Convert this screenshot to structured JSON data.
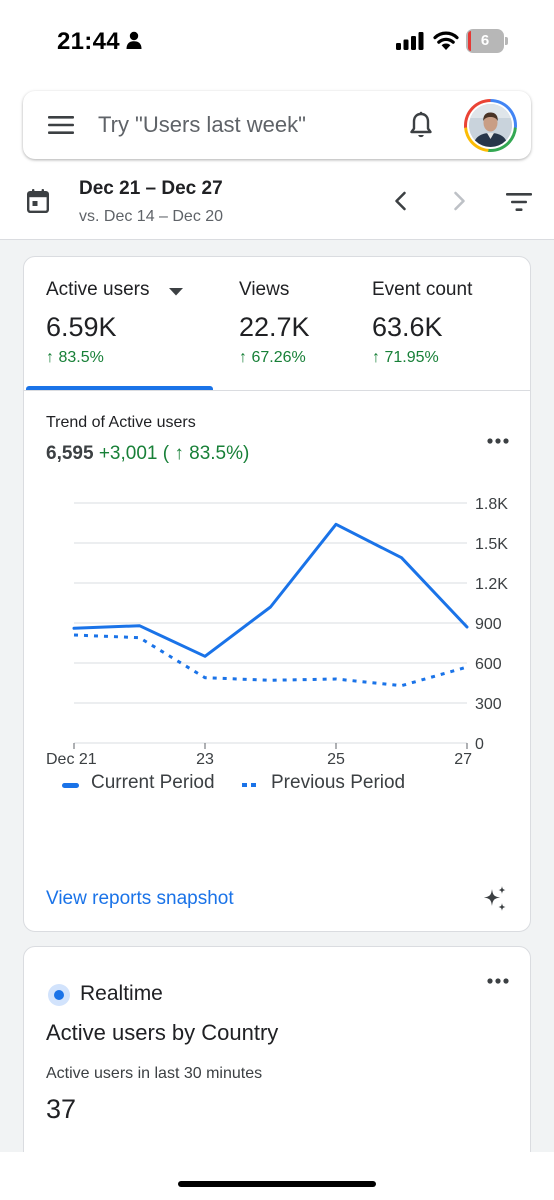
{
  "status_bar": {
    "time": "21:44",
    "battery_level": "6",
    "icons": [
      "person-icon",
      "cellular-signal-icon",
      "wifi-icon",
      "battery-icon"
    ]
  },
  "search": {
    "placeholder": "Try \"Users last week\"",
    "icons": [
      "menu-icon",
      "bell-icon",
      "avatar"
    ]
  },
  "date_range": {
    "current": "Dec 21 – Dec 27",
    "comparison": "vs. Dec 14 – Dec 20",
    "icons": [
      "calendar-icon",
      "chevron-left-icon",
      "chevron-right-icon",
      "filter-icon"
    ]
  },
  "metric_tabs": [
    {
      "label": "Active users",
      "value": "6.59K",
      "change": "↑ 83.5%",
      "selected": true
    },
    {
      "label": "Views",
      "value": "22.7K",
      "change": "↑ 67.26%",
      "selected": false
    },
    {
      "label": "Event count",
      "value": "63.6K",
      "change": "↑ 71.95%",
      "selected": false
    }
  ],
  "trend": {
    "title": "Trend of Active users",
    "total": "6,595",
    "delta": "+3,001 ( ↑ 83.5%)"
  },
  "chart_data": {
    "type": "line",
    "x": [
      "Dec 21",
      "Dec 22",
      "Dec 23",
      "Dec 24",
      "Dec 25",
      "Dec 26",
      "Dec 27"
    ],
    "x_tick_labels": [
      "Dec 21",
      "23",
      "25",
      "27"
    ],
    "y_tick_labels": [
      "0",
      "300",
      "600",
      "900",
      "1.2K",
      "1.5K",
      "1.8K"
    ],
    "ylim": [
      0,
      1800
    ],
    "y_axis_side": "right",
    "grid": true,
    "legend_position": "bottom",
    "series": [
      {
        "name": "Current Period",
        "style": "solid",
        "values": [
          860,
          880,
          650,
          1020,
          1640,
          1390,
          870
        ]
      },
      {
        "name": "Previous Period",
        "style": "dashed",
        "values": [
          810,
          790,
          490,
          470,
          480,
          430,
          570
        ]
      }
    ],
    "colors": {
      "series": "#1a73e8",
      "grid": "#dadce0",
      "axis_text": "#3c4043"
    }
  },
  "snapshot": {
    "link_label": "View reports snapshot",
    "icon": "sparkle-icon"
  },
  "realtime": {
    "label": "Realtime",
    "title": "Active users by Country",
    "subtitle": "Active users in last 30 minutes",
    "count": "37"
  },
  "colors": {
    "accent": "#1a73e8",
    "positive": "#188038",
    "background": "#f1f3f4"
  }
}
